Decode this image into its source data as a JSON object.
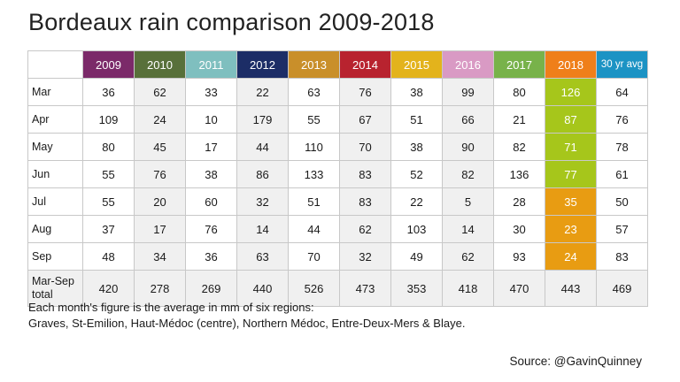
{
  "title": "Bordeaux rain comparison 2009-2018",
  "chart_data": {
    "type": "table",
    "title": "Bordeaux rain comparison 2009-2018",
    "columns": [
      {
        "label": "2009",
        "color": "#7b2a69"
      },
      {
        "label": "2010",
        "color": "#58703a"
      },
      {
        "label": "2011",
        "color": "#7fbfbf"
      },
      {
        "label": "2012",
        "color": "#1c2d66"
      },
      {
        "label": "2013",
        "color": "#c98f2a"
      },
      {
        "label": "2014",
        "color": "#b8232f"
      },
      {
        "label": "2015",
        "color": "#e3b31c"
      },
      {
        "label": "2016",
        "color": "#d99ac4"
      },
      {
        "label": "2017",
        "color": "#78b24a"
      },
      {
        "label": "2018",
        "color": "#ef7f1a"
      },
      {
        "label": "30 yr avg",
        "color": "#1c93c4"
      }
    ],
    "rows": [
      {
        "label": "Mar",
        "values": [
          "36",
          "62",
          "33",
          "22",
          "63",
          "76",
          "38",
          "99",
          "80",
          "126",
          "64"
        ],
        "hl": "#a6c61b"
      },
      {
        "label": "Apr",
        "values": [
          "109",
          "24",
          "10",
          "179",
          "55",
          "67",
          "51",
          "66",
          "21",
          "87",
          "76"
        ],
        "hl": "#a6c61b"
      },
      {
        "label": "May",
        "values": [
          "80",
          "45",
          "17",
          "44",
          "110",
          "70",
          "38",
          "90",
          "82",
          "71",
          "78"
        ],
        "hl": "#a6c61b"
      },
      {
        "label": "Jun",
        "values": [
          "55",
          "76",
          "38",
          "86",
          "133",
          "83",
          "52",
          "82",
          "136",
          "77",
          "61"
        ],
        "hl": "#a6c61b"
      },
      {
        "label": "Jul",
        "values": [
          "55",
          "20",
          "60",
          "32",
          "51",
          "83",
          "22",
          "5",
          "28",
          "35",
          "50"
        ],
        "hl": "#e89c12"
      },
      {
        "label": "Aug",
        "values": [
          "37",
          "17",
          "76",
          "14",
          "44",
          "62",
          "103",
          "14",
          "30",
          "23",
          "57"
        ],
        "hl": "#e89c12"
      },
      {
        "label": "Sep",
        "values": [
          "48",
          "34",
          "36",
          "63",
          "70",
          "32",
          "49",
          "62",
          "93",
          "24",
          "83"
        ],
        "hl": "#e89c12"
      },
      {
        "label": "Mar-Sep total",
        "values": [
          "420",
          "278",
          "269",
          "440",
          "526",
          "473",
          "353",
          "418",
          "470",
          "443",
          "469"
        ],
        "total": true
      }
    ]
  },
  "note_line1": "Each month's figure is the average in mm of six regions:",
  "note_line2": "Graves, St-Emilion, Haut-Médoc (centre), Northern Médoc, Entre-Deux-Mers & Blaye.",
  "source": "Source: @GavinQuinney"
}
